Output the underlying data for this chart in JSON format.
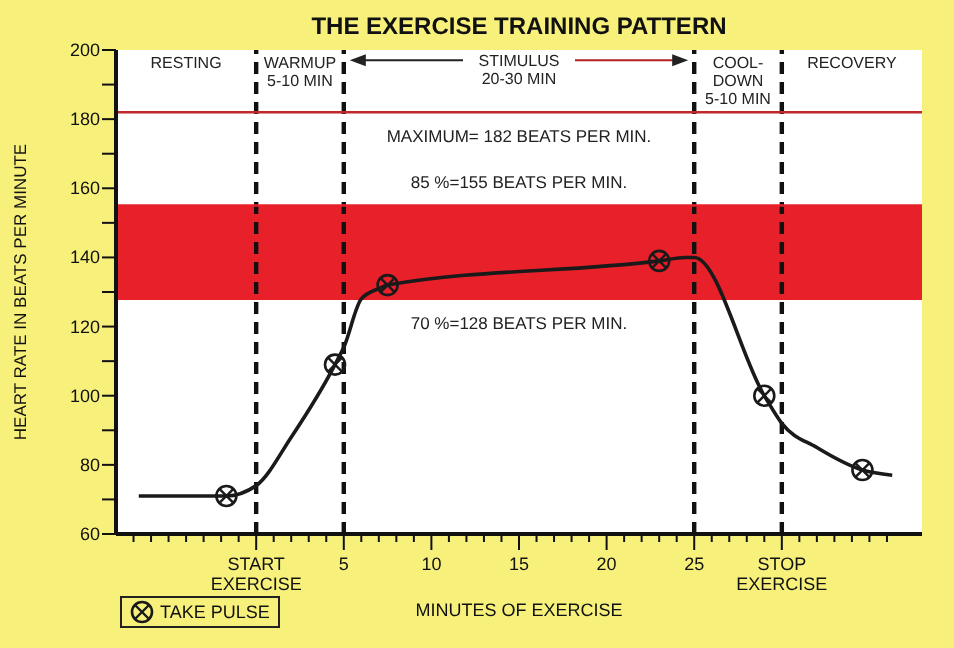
{
  "chart_data": {
    "type": "line",
    "title": "THE EXERCISE TRAINING PATTERN",
    "xlabel": "MINUTES OF EXERCISE",
    "ylabel": "HEART RATE IN BEATS PER MINUTE",
    "xlim": [
      -8,
      38
    ],
    "xticks": [
      {
        "value": -7,
        "label": null
      },
      {
        "value": -6,
        "label": null
      },
      {
        "value": -5,
        "label": null
      },
      {
        "value": -4,
        "label": null
      },
      {
        "value": -3,
        "label": null
      },
      {
        "value": -2,
        "label": null
      },
      {
        "value": -1,
        "label": null
      },
      {
        "value": 0,
        "label": "START\nEXERCISE"
      },
      {
        "value": 1,
        "label": null
      },
      {
        "value": 2,
        "label": null
      },
      {
        "value": 3,
        "label": null
      },
      {
        "value": 4,
        "label": null
      },
      5,
      {
        "value": 6,
        "label": null
      },
      {
        "value": 7,
        "label": null
      },
      {
        "value": 8,
        "label": null
      },
      {
        "value": 9,
        "label": null
      },
      10,
      {
        "value": 11,
        "label": null
      },
      {
        "value": 12,
        "label": null
      },
      {
        "value": 13,
        "label": null
      },
      {
        "value": 14,
        "label": null
      },
      15,
      {
        "value": 16,
        "label": null
      },
      {
        "value": 17,
        "label": null
      },
      {
        "value": 18,
        "label": null
      },
      {
        "value": 19,
        "label": null
      },
      20,
      {
        "value": 21,
        "label": null
      },
      {
        "value": 22,
        "label": null
      },
      {
        "value": 23,
        "label": null
      },
      {
        "value": 24,
        "label": null
      },
      25,
      {
        "value": 26,
        "label": null
      },
      {
        "value": 27,
        "label": null
      },
      {
        "value": 28,
        "label": null
      },
      {
        "value": 29,
        "label": null
      },
      {
        "value": 30,
        "label": "STOP\nEXERCISE"
      },
      {
        "value": 31,
        "label": null
      },
      {
        "value": 32,
        "label": null
      },
      {
        "value": 33,
        "label": null
      },
      {
        "value": 34,
        "label": null
      },
      {
        "value": 35,
        "label": null
      },
      {
        "value": 36,
        "label": null
      }
    ],
    "ylim": [
      60,
      200
    ],
    "yticks": [
      60,
      {
        "value": 70,
        "label": null
      },
      80,
      {
        "value": 90,
        "label": null
      },
      100,
      {
        "value": 110,
        "label": null
      },
      120,
      {
        "value": 130,
        "label": null
      },
      140,
      {
        "value": 150,
        "label": null
      },
      160,
      {
        "value": 170,
        "label": null
      },
      180,
      {
        "value": 190,
        "label": null
      },
      200
    ],
    "grid": false,
    "legend": "bottom left",
    "series": [
      {
        "type": "line",
        "color": "#1a1a1a",
        "marker": "none",
        "x": [
          -6.7,
          -1.7,
          0,
          2,
          4.5,
          5,
          6,
          7,
          7.5,
          23,
          24.5,
          25,
          29,
          30,
          32,
          34.6,
          36.3
        ],
        "values": [
          71,
          71,
          74,
          88,
          109,
          114,
          128,
          131,
          132,
          139,
          140,
          140,
          100,
          92,
          85,
          78.5,
          77
        ]
      },
      {
        "type": "scatter",
        "name": "TAKE PULSE",
        "color": "#1a1a1a",
        "marker": "circle",
        "x": [
          -1.7,
          4.5,
          7.5,
          23,
          29,
          34.6
        ],
        "values": [
          71,
          109,
          132,
          139,
          100,
          78.5
        ]
      }
    ],
    "ref_lines": [
      {
        "axis": "x",
        "value": 0,
        "color": "#111111",
        "line_style": "dashed"
      },
      {
        "axis": "x",
        "value": 5,
        "color": "#111111",
        "line_style": "dashed"
      },
      {
        "axis": "x",
        "value": 25,
        "color": "#111111",
        "line_style": "dashed"
      },
      {
        "axis": "x",
        "value": 30,
        "color": "#111111",
        "line_style": "dashed"
      },
      {
        "axis": "y",
        "value": 182,
        "label": "MAXIMUM= 182 BEATS PER MIN.",
        "color": "#c0282d",
        "line_style": "solid"
      },
      {
        "axis": "y",
        "value": 155,
        "label": "85 %=155 BEATS PER MIN.",
        "color": "#e8202a",
        "line_style": "solid"
      },
      {
        "axis": "y",
        "value": 128,
        "label": "70 %=128 BEATS PER MIN.",
        "color": "#e8202a",
        "line_style": "solid"
      }
    ],
    "bands": [
      {
        "axis": "y",
        "from": 128,
        "to": 155,
        "color": "#e8202a"
      }
    ],
    "annotations": [
      "RESTING",
      "WARMUP\n5-10 MIN",
      {
        "text": "STIMULUS\n\n20-30 MIN",
        "x": 5,
        "y": 197
      },
      "COOL-\nDOWN\n5-10 MIN",
      "RECOVERY"
    ]
  }
}
